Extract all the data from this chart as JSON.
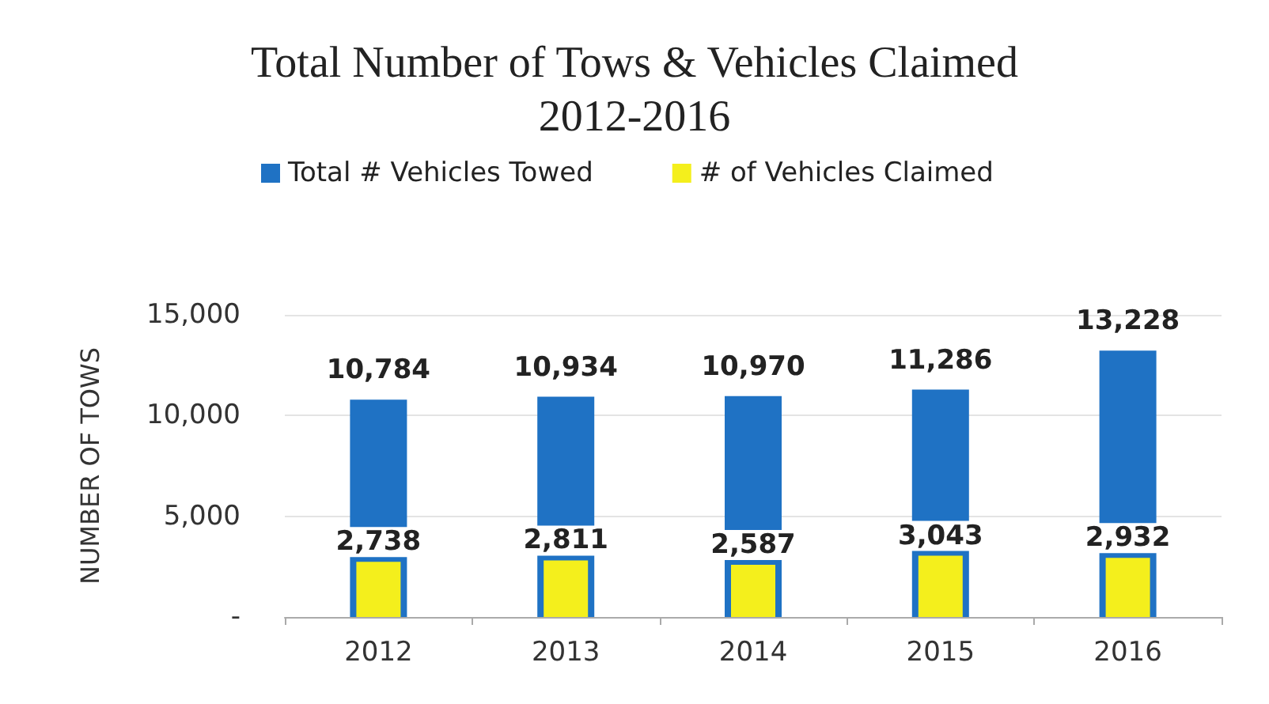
{
  "chart_data": {
    "type": "bar",
    "title": "Total Number of Tows & Vehicles Claimed\n2012-2016",
    "ylabel": "NUMBER OF TOWS",
    "categories": [
      "2012",
      "2013",
      "2014",
      "2015",
      "2016"
    ],
    "series": [
      {
        "name": "Total # Vehicles Towed",
        "color": "#1f72c4",
        "values": [
          10784,
          10934,
          10970,
          11286,
          13228
        ],
        "value_labels": [
          "10,784",
          "10,934",
          "10,970",
          "11,286",
          "13,228"
        ]
      },
      {
        "name": "# of Vehicles Claimed",
        "color": "#f4ef1c",
        "values": [
          2738,
          2811,
          2587,
          3043,
          2932
        ],
        "value_labels": [
          "2,738",
          "2,811",
          "2,587",
          "3,043",
          "2,932"
        ]
      }
    ],
    "ylim": [
      0,
      15000
    ],
    "yticks": [
      {
        "value": 0,
        "label": "-"
      },
      {
        "value": 5000,
        "label": "5,000"
      },
      {
        "value": 10000,
        "label": "10,000"
      },
      {
        "value": 15000,
        "label": "15,000"
      }
    ],
    "grid": "y",
    "legend": "top"
  }
}
